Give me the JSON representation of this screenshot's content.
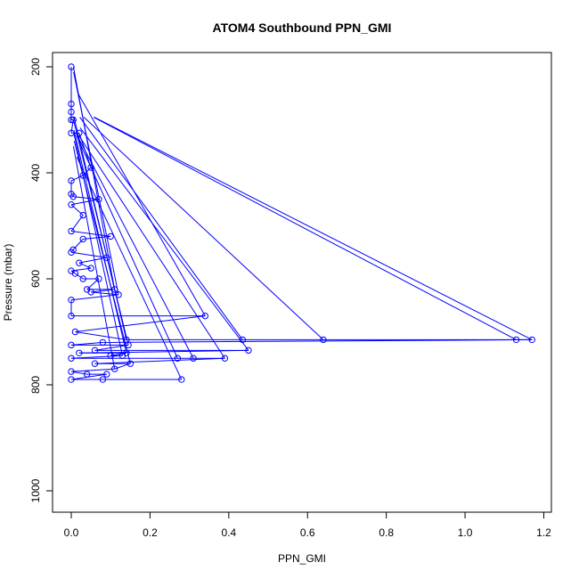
{
  "chart_data": {
    "type": "line",
    "title": "ATOM4 Southbound PPN_GMI",
    "xlabel": "PPN_GMI",
    "ylabel": "Pressure (mbar)",
    "xlim": [
      0,
      1.2
    ],
    "ylim": [
      1000,
      200
    ],
    "y_axis_reversed": true,
    "x_ticks": [
      "0.0",
      "0.2",
      "0.4",
      "0.6",
      "0.8",
      "1.0",
      "1.2"
    ],
    "y_ticks": [
      "200",
      "400",
      "600",
      "800",
      "1000"
    ],
    "grid": false,
    "legend": "none",
    "series": [
      {
        "marker": "open-circle",
        "color": "#0000ff",
        "points": [
          [
            0.0,
            200
          ],
          [
            0.0,
            270
          ],
          [
            0.0,
            285
          ],
          [
            0.0,
            300
          ],
          [
            0.0,
            325
          ],
          [
            0.0,
            415
          ],
          [
            0.0,
            440
          ],
          [
            0.0,
            460
          ],
          [
            0.0,
            510
          ],
          [
            0.0,
            550
          ],
          [
            0.0,
            585
          ],
          [
            0.0,
            640
          ],
          [
            0.0,
            670
          ],
          [
            0.0,
            725
          ],
          [
            0.0,
            750
          ],
          [
            0.0,
            775
          ],
          [
            0.0,
            790
          ],
          [
            0.005,
            300
          ],
          [
            0.005,
            445
          ],
          [
            0.005,
            545
          ],
          [
            0.01,
            590
          ],
          [
            0.01,
            700
          ],
          [
            0.02,
            325
          ],
          [
            0.02,
            570
          ],
          [
            0.03,
            405
          ],
          [
            0.03,
            480
          ],
          [
            0.03,
            525
          ],
          [
            0.03,
            600
          ],
          [
            0.04,
            620
          ],
          [
            0.02,
            740
          ],
          [
            0.04,
            780
          ],
          [
            0.05,
            390
          ],
          [
            0.05,
            580
          ],
          [
            0.05,
            625
          ],
          [
            0.06,
            735
          ],
          [
            0.06,
            760
          ],
          [
            0.07,
            600
          ],
          [
            0.07,
            450
          ],
          [
            0.08,
            720
          ],
          [
            0.08,
            790
          ],
          [
            0.09,
            560
          ],
          [
            0.09,
            780
          ],
          [
            0.1,
            520
          ],
          [
            0.1,
            745
          ],
          [
            0.11,
            770
          ],
          [
            0.11,
            620
          ],
          [
            0.12,
            630
          ],
          [
            0.13,
            745
          ],
          [
            0.14,
            740
          ],
          [
            0.145,
            725
          ],
          [
            0.15,
            760
          ],
          [
            0.14,
            715
          ],
          [
            0.27,
            750
          ],
          [
            0.28,
            790
          ],
          [
            0.31,
            750
          ],
          [
            0.34,
            670
          ],
          [
            0.39,
            750
          ],
          [
            0.435,
            715
          ],
          [
            0.45,
            735
          ],
          [
            0.64,
            715
          ],
          [
            1.13,
            715
          ],
          [
            1.17,
            715
          ]
        ]
      }
    ]
  }
}
